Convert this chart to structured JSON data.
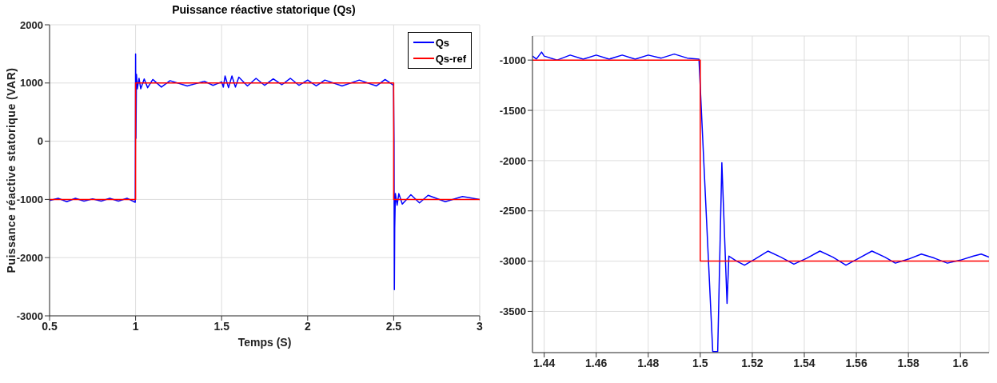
{
  "chart_data": [
    {
      "type": "line",
      "title": "Puissance réactive statorique (Qs)",
      "xlabel": "Temps (S)",
      "ylabel": "Puissance réactive statorique (VAR)",
      "xlim": [
        0.5,
        3
      ],
      "ylim": [
        -3000,
        2000
      ],
      "xticks": [
        0.5,
        1,
        1.5,
        2,
        2.5,
        3
      ],
      "yticks": [
        -3000,
        -2000,
        -1000,
        0,
        1000,
        2000
      ],
      "grid": true,
      "legend": "top right",
      "marker": "none",
      "line_style": "solid",
      "series": [
        {
          "name": "Qs",
          "color": "#0000ff",
          "x": [
            0.5,
            0.55,
            0.6,
            0.65,
            0.7,
            0.75,
            0.8,
            0.85,
            0.9,
            0.95,
            0.998,
            1.0,
            1.002,
            1.005,
            1.01,
            1.02,
            1.03,
            1.05,
            1.07,
            1.1,
            1.15,
            1.2,
            1.3,
            1.4,
            1.45,
            1.5,
            1.51,
            1.52,
            1.54,
            1.56,
            1.58,
            1.6,
            1.65,
            1.7,
            1.75,
            1.8,
            1.85,
            1.9,
            1.95,
            2.0,
            2.05,
            2.1,
            2.2,
            2.3,
            2.4,
            2.45,
            2.499,
            2.502,
            2.504,
            2.506,
            2.51,
            2.52,
            2.53,
            2.55,
            2.6,
            2.65,
            2.7,
            2.8,
            2.9,
            3.0
          ],
          "values": [
            -1020,
            -980,
            -1040,
            -980,
            -1030,
            -990,
            -1030,
            -980,
            -1030,
            -980,
            -1050,
            1500,
            50,
            1150,
            900,
            1080,
            900,
            1070,
            920,
            1060,
            930,
            1040,
            950,
            1030,
            960,
            1020,
            930,
            1120,
            920,
            1120,
            930,
            1100,
            950,
            1080,
            960,
            1070,
            970,
            1080,
            960,
            1050,
            950,
            1050,
            950,
            1050,
            950,
            1060,
            960,
            -20,
            -2550,
            -1500,
            -900,
            -1100,
            -900,
            -1080,
            -920,
            -1060,
            -930,
            -1040,
            -950,
            -1000
          ]
        },
        {
          "name": "Qs-ref",
          "color": "#ff0000",
          "x": [
            0.5,
            1.0,
            1.0,
            2.5,
            2.5,
            3.0
          ],
          "values": [
            -1000,
            -1000,
            1000,
            1000,
            -1000,
            -1000
          ]
        }
      ]
    },
    {
      "type": "line",
      "xlim": [
        1.4355,
        1.611
      ],
      "ylim": [
        -3910,
        -760
      ],
      "xticks": [
        1.44,
        1.46,
        1.48,
        1.5,
        1.52,
        1.54,
        1.56,
        1.58,
        1.6
      ],
      "yticks": [
        -3500,
        -3000,
        -2500,
        -2000,
        -1500,
        -1000
      ],
      "grid": true,
      "marker": "none",
      "line_style": "solid",
      "series": [
        {
          "color": "#0000ff",
          "x": [
            1.4355,
            1.437,
            1.439,
            1.44,
            1.445,
            1.45,
            1.455,
            1.46,
            1.465,
            1.47,
            1.475,
            1.48,
            1.485,
            1.49,
            1.495,
            1.4995,
            1.5048,
            1.5067,
            1.5083,
            1.5103,
            1.511,
            1.514,
            1.517,
            1.521,
            1.526,
            1.531,
            1.536,
            1.541,
            1.546,
            1.551,
            1.556,
            1.561,
            1.566,
            1.571,
            1.575,
            1.58,
            1.585,
            1.59,
            1.595,
            1.6,
            1.605,
            1.608,
            1.611
          ],
          "values": [
            -960,
            -990,
            -920,
            -960,
            -1000,
            -950,
            -990,
            -950,
            -990,
            -950,
            -990,
            -950,
            -980,
            -940,
            -980,
            -990,
            -3900,
            -3900,
            -2020,
            -3420,
            -2950,
            -3000,
            -3040,
            -2980,
            -2900,
            -2960,
            -3030,
            -2970,
            -2900,
            -2960,
            -3040,
            -2970,
            -2900,
            -2960,
            -3020,
            -2980,
            -2930,
            -2970,
            -3020,
            -2990,
            -2950,
            -2930,
            -2960
          ]
        },
        {
          "color": "#ff0000",
          "x": [
            1.4355,
            1.5,
            1.5,
            1.611
          ],
          "values": [
            -1000,
            -1000,
            -3000,
            -3000
          ]
        }
      ]
    }
  ]
}
